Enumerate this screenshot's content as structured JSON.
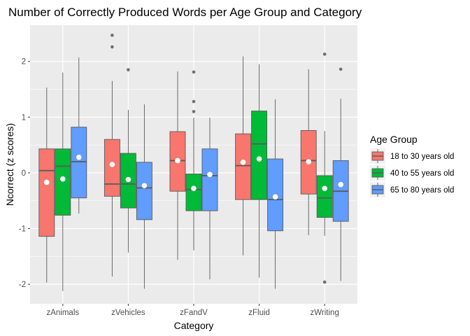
{
  "chart_data": {
    "type": "boxplot",
    "title": "Number of Correctly Produced Words per Age Group and Category",
    "xlabel": "Category",
    "ylabel": "Ncorrect (z scores)",
    "categories": [
      "zAnimals",
      "zVehicles",
      "zFandV",
      "zFluid",
      "zWriting"
    ],
    "ylim": [
      -2.35,
      2.65
    ],
    "yticks": [
      -2,
      -1,
      0,
      1,
      2
    ],
    "grid": true,
    "legend_title": "Age Group",
    "legend_position": "right",
    "series": [
      {
        "name": "18 to 30 years old",
        "color": "#F8766D",
        "boxes": [
          {
            "q1": -1.14,
            "median": 0.04,
            "q3": 0.43,
            "whisker_low": -1.97,
            "whisker_high": 1.53,
            "mean": -0.17,
            "outliers": []
          },
          {
            "q1": -0.42,
            "median": -0.2,
            "q3": 0.6,
            "whisker_low": -1.86,
            "whisker_high": 1.65,
            "mean": 0.15,
            "outliers": [
              2.26,
              2.47
            ]
          },
          {
            "q1": -0.33,
            "median": 0.22,
            "q3": 0.74,
            "whisker_low": -1.56,
            "whisker_high": 1.82,
            "mean": 0.22,
            "outliers": []
          },
          {
            "q1": -0.48,
            "median": 0.13,
            "q3": 0.7,
            "whisker_low": -1.48,
            "whisker_high": 2.09,
            "mean": 0.19,
            "outliers": []
          },
          {
            "q1": -0.38,
            "median": 0.22,
            "q3": 0.76,
            "whisker_low": -1.12,
            "whisker_high": 1.86,
            "mean": 0.2,
            "outliers": []
          }
        ]
      },
      {
        "name": "40 to 55 years old",
        "color": "#00BA38",
        "boxes": [
          {
            "q1": -0.76,
            "median": 0.12,
            "q3": 0.43,
            "whisker_low": -2.12,
            "whisker_high": 1.8,
            "mean": -0.11,
            "outliers": []
          },
          {
            "q1": -0.63,
            "median": -0.2,
            "q3": 0.35,
            "whisker_low": -1.43,
            "whisker_high": 1.13,
            "mean": -0.12,
            "outliers": [
              1.85
            ]
          },
          {
            "q1": -0.68,
            "median": -0.3,
            "q3": -0.02,
            "whisker_low": -1.39,
            "whisker_high": 0.99,
            "mean": -0.28,
            "outliers": [
              1.1,
              1.28,
              1.81
            ]
          },
          {
            "q1": -0.48,
            "median": 0.52,
            "q3": 1.11,
            "whisker_low": -1.88,
            "whisker_high": 1.95,
            "mean": 0.25,
            "outliers": []
          },
          {
            "q1": -0.8,
            "median": -0.45,
            "q3": -0.05,
            "whisker_low": -1.13,
            "whisker_high": 0.75,
            "mean": -0.28,
            "outliers": [
              -1.96,
              2.13
            ]
          }
        ]
      },
      {
        "name": "65 to 80 years old",
        "color": "#619CFF",
        "boxes": [
          {
            "q1": -0.45,
            "median": 0.2,
            "q3": 0.82,
            "whisker_low": -0.73,
            "whisker_high": 2.07,
            "mean": 0.28,
            "outliers": []
          },
          {
            "q1": -0.84,
            "median": -0.27,
            "q3": 0.19,
            "whisker_low": -2.08,
            "whisker_high": 1.23,
            "mean": -0.23,
            "outliers": []
          },
          {
            "q1": -0.68,
            "median": -0.05,
            "q3": 0.43,
            "whisker_low": -1.91,
            "whisker_high": 0.99,
            "mean": -0.03,
            "outliers": []
          },
          {
            "q1": -1.04,
            "median": -0.48,
            "q3": 0.25,
            "whisker_low": -2.08,
            "whisker_high": 1.32,
            "mean": -0.43,
            "outliers": []
          },
          {
            "q1": -0.87,
            "median": -0.33,
            "q3": 0.22,
            "whisker_low": -1.94,
            "whisker_high": 1.33,
            "mean": -0.21,
            "outliers": [
              1.86
            ]
          }
        ]
      }
    ]
  }
}
